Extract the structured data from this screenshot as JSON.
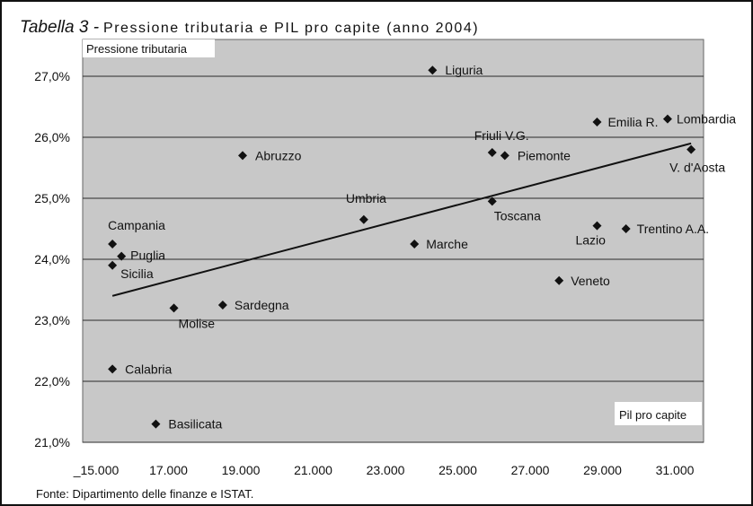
{
  "title_prefix": "Tabella 3 -",
  "title_text": "Pressione tributaria e PIL pro capite (anno 2004)",
  "source": "Fonte: Dipartimento delle finanze e ISTAT.",
  "colors": {
    "plot_bg": "#c8c8c8",
    "grid": "#2a2a2a",
    "marker": "#111111",
    "trend": "#111111"
  },
  "chart_data": {
    "type": "scatter",
    "title": "Pressione tributaria e PIL pro capite (anno 2004)",
    "ylabel": "Pressione tributaria",
    "xlabel": "Pil pro capite",
    "xlim": [
      15000,
      32000
    ],
    "ylim": [
      21.0,
      27.5
    ],
    "x_ticks": [
      {
        "value": 15000,
        "label": "_15.000"
      },
      {
        "value": 17000,
        "label": "17.000"
      },
      {
        "value": 19000,
        "label": "19.000"
      },
      {
        "value": 21000,
        "label": "21.000"
      },
      {
        "value": 23000,
        "label": "23.000"
      },
      {
        "value": 25000,
        "label": "25.000"
      },
      {
        "value": 27000,
        "label": "27.000"
      },
      {
        "value": 29000,
        "label": "29.000"
      },
      {
        "value": 31000,
        "label": "31.000"
      }
    ],
    "y_ticks": [
      {
        "value": 21.0,
        "label": "21,0%"
      },
      {
        "value": 22.0,
        "label": "22,0%"
      },
      {
        "value": 23.0,
        "label": "23,0%"
      },
      {
        "value": 24.0,
        "label": "24,0%"
      },
      {
        "value": 25.0,
        "label": "25,0%"
      },
      {
        "value": 26.0,
        "label": "26,0%"
      },
      {
        "value": 27.0,
        "label": "27,0%"
      }
    ],
    "grid": "horizontal",
    "points": [
      {
        "name": "Liguria",
        "x": 24300,
        "y": 27.1
      },
      {
        "name": "Friuli V.G.",
        "x": 25950,
        "y": 25.75
      },
      {
        "name": "Piemonte",
        "x": 26300,
        "y": 25.7
      },
      {
        "name": "Emilia R.",
        "x": 28850,
        "y": 26.25
      },
      {
        "name": "Lombardia",
        "x": 30800,
        "y": 26.3
      },
      {
        "name": "V. d'Aosta",
        "x": 31450,
        "y": 25.8
      },
      {
        "name": "Abruzzo",
        "x": 19050,
        "y": 25.7
      },
      {
        "name": "Umbria",
        "x": 22400,
        "y": 24.65
      },
      {
        "name": "Toscana",
        "x": 25950,
        "y": 24.95
      },
      {
        "name": "Marche",
        "x": 23800,
        "y": 24.25
      },
      {
        "name": "Lazio",
        "x": 28850,
        "y": 24.55
      },
      {
        "name": "Trentino A.A.",
        "x": 29650,
        "y": 24.5
      },
      {
        "name": "Campania",
        "x": 15450,
        "y": 24.25
      },
      {
        "name": "Puglia",
        "x": 15700,
        "y": 24.05
      },
      {
        "name": "Sicilia",
        "x": 15450,
        "y": 23.9
      },
      {
        "name": "Veneto",
        "x": 27800,
        "y": 23.65
      },
      {
        "name": "Molise",
        "x": 17150,
        "y": 23.2
      },
      {
        "name": "Sardegna",
        "x": 18500,
        "y": 23.25
      },
      {
        "name": "Calabria",
        "x": 15450,
        "y": 22.2
      },
      {
        "name": "Basilicata",
        "x": 16650,
        "y": 21.3
      }
    ],
    "trendline": {
      "x": [
        15450,
        31450
      ],
      "y": [
        23.4,
        25.9
      ]
    }
  }
}
